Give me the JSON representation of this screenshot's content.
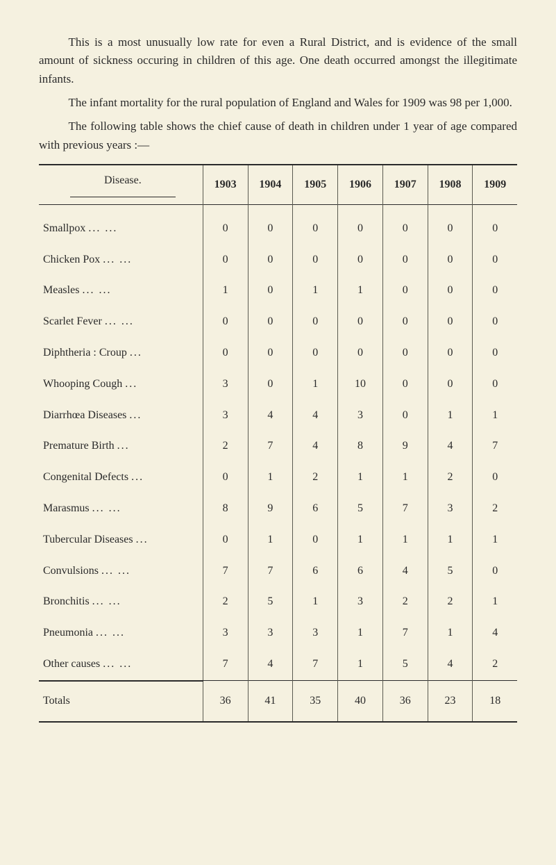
{
  "paragraphs": {
    "p1": "This is a most unusually low rate for even a Rural District, and is evidence of the small amount of sickness occuring in children of this age.  One death occurred amongst the illegitimate infants.",
    "p2": "The infant mortality for the rural population of England and Wales for 1909 was 98 per 1,000.",
    "p3": "The following table shows the chief cause of death in children under 1 year of age compared with previous years :—"
  },
  "table": {
    "header_disease": "Disease.",
    "year_columns": [
      "1903",
      "1904",
      "1905",
      "1906",
      "1907",
      "1908",
      "1909"
    ],
    "rows": [
      {
        "label": "Smallpox",
        "dots": "...    ...",
        "values": [
          "0",
          "0",
          "0",
          "0",
          "0",
          "0",
          "0"
        ]
      },
      {
        "label": "Chicken Pox",
        "dots": "...    ...",
        "values": [
          "0",
          "0",
          "0",
          "0",
          "0",
          "0",
          "0"
        ]
      },
      {
        "label": "Measles",
        "dots": "...    ...",
        "values": [
          "1",
          "0",
          "1",
          "1",
          "0",
          "0",
          "0"
        ]
      },
      {
        "label": "Scarlet Fever",
        "dots": "...    ...",
        "values": [
          "0",
          "0",
          "0",
          "0",
          "0",
          "0",
          "0"
        ]
      },
      {
        "label": "Diphtheria : Croup",
        "dots": "...",
        "values": [
          "0",
          "0",
          "0",
          "0",
          "0",
          "0",
          "0"
        ]
      },
      {
        "label": "Whooping Cough",
        "dots": "...",
        "values": [
          "3",
          "0",
          "1",
          "10",
          "0",
          "0",
          "0"
        ]
      },
      {
        "label": "Diarrhœa Diseases",
        "dots": "...",
        "values": [
          "3",
          "4",
          "4",
          "3",
          "0",
          "1",
          "1"
        ]
      },
      {
        "label": "Premature Birth",
        "dots": "...",
        "values": [
          "2",
          "7",
          "4",
          "8",
          "9",
          "4",
          "7"
        ]
      },
      {
        "label": "Congenital Defects",
        "dots": "...",
        "values": [
          "0",
          "1",
          "2",
          "1",
          "1",
          "2",
          "0"
        ]
      },
      {
        "label": "Marasmus",
        "dots": "...    ...",
        "values": [
          "8",
          "9",
          "6",
          "5",
          "7",
          "3",
          "2"
        ]
      },
      {
        "label": "Tubercular Diseases",
        "dots": "...",
        "values": [
          "0",
          "1",
          "0",
          "1",
          "1",
          "1",
          "1"
        ]
      },
      {
        "label": "Convulsions",
        "dots": "...    ...",
        "values": [
          "7",
          "7",
          "6",
          "6",
          "4",
          "5",
          "0"
        ]
      },
      {
        "label": "Bronchitis",
        "dots": "...    ...",
        "values": [
          "2",
          "5",
          "1",
          "3",
          "2",
          "2",
          "1"
        ]
      },
      {
        "label": "Pneumonia",
        "dots": "...    ...",
        "values": [
          "3",
          "3",
          "3",
          "1",
          "7",
          "1",
          "4"
        ]
      },
      {
        "label": "Other causes",
        "dots": "...    ...",
        "values": [
          "7",
          "4",
          "7",
          "1",
          "5",
          "4",
          "2"
        ]
      }
    ],
    "totals_label": "Totals",
    "totals": [
      "36",
      "41",
      "35",
      "40",
      "36",
      "23",
      "18"
    ]
  }
}
